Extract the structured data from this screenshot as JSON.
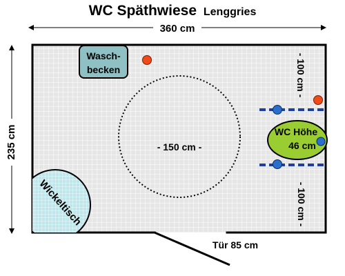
{
  "title": {
    "main": "WC Späthwiese",
    "sub": "Lenggries"
  },
  "dimensions": {
    "width": "360 cm",
    "height": "235 cm",
    "turning_circle": "- 150 cm -",
    "clearance_top": "- 100 cm -",
    "clearance_bottom": "- 100 cm -",
    "door": "Tür 85 cm"
  },
  "fixtures": {
    "sink_line1": "Wasch-",
    "sink_line2": "becken",
    "wc_line1": "WC Höhe",
    "wc_line2": "46 cm",
    "changing_table": "Wickeltisch"
  },
  "colors": {
    "floor": "#e6e6e6",
    "grid": "#ffffff",
    "wall": "#000000",
    "sink_fill": "#8fc1c4",
    "wc_fill": "#9acd32",
    "changing_fill": "#bfe6ea",
    "grab_bar": "#1f3f9a",
    "blue_dot": "#2a6fc9",
    "red_dot": "#f04a1a"
  }
}
